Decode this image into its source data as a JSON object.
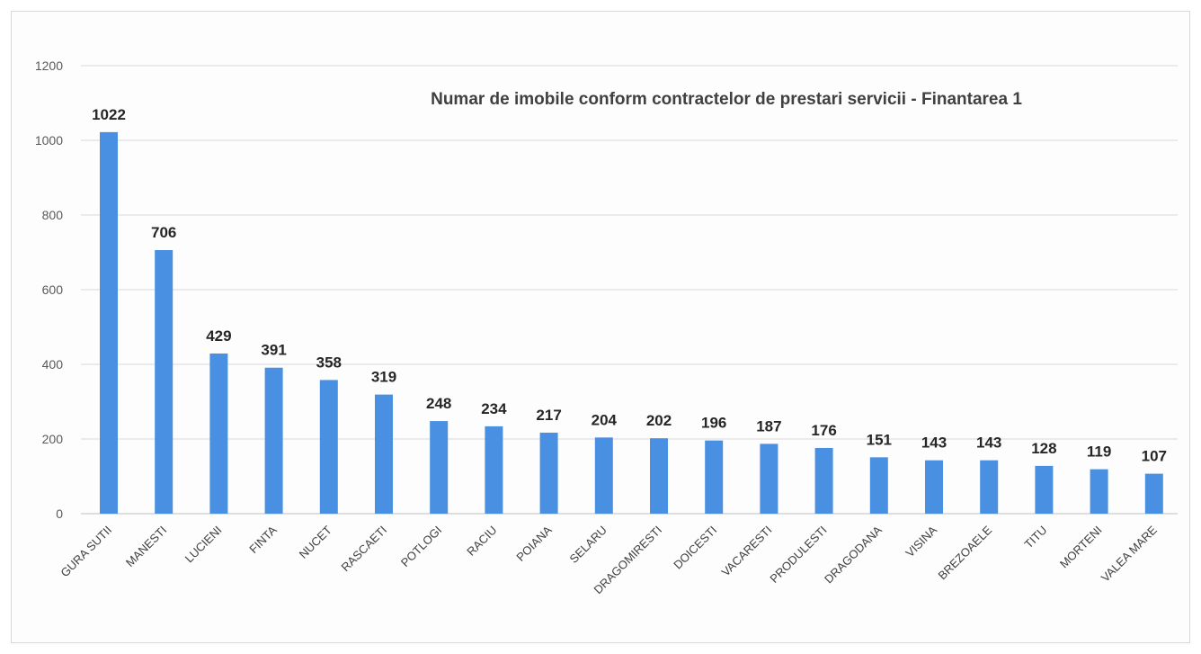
{
  "chart_data": {
    "type": "bar",
    "title": "Numar de imobile conform contractelor de prestari servicii - Finantarea 1",
    "xlabel": "",
    "ylabel": "",
    "ylim": [
      0,
      1200
    ],
    "yticks": [
      0,
      200,
      400,
      600,
      800,
      1000,
      1200
    ],
    "grid": true,
    "legend": "none",
    "bar_color": "#4a90e2",
    "categories": [
      "GURA SUTII",
      "MANESTI",
      "LUCIENI",
      "FINTA",
      "NUCET",
      "RASCAETI",
      "POTLOGI",
      "RACIU",
      "POIANA",
      "SELARU",
      "DRAGOMIRESTI",
      "DOICESTI",
      "VACARESTI",
      "PRODULESTI",
      "DRAGODANA",
      "VISINA",
      "BREZOAELE",
      "TITU",
      "MORTENI",
      "VALEA MARE"
    ],
    "values": [
      1022,
      706,
      429,
      391,
      358,
      319,
      248,
      234,
      217,
      204,
      202,
      196,
      187,
      176,
      151,
      143,
      143,
      128,
      119,
      107
    ]
  }
}
